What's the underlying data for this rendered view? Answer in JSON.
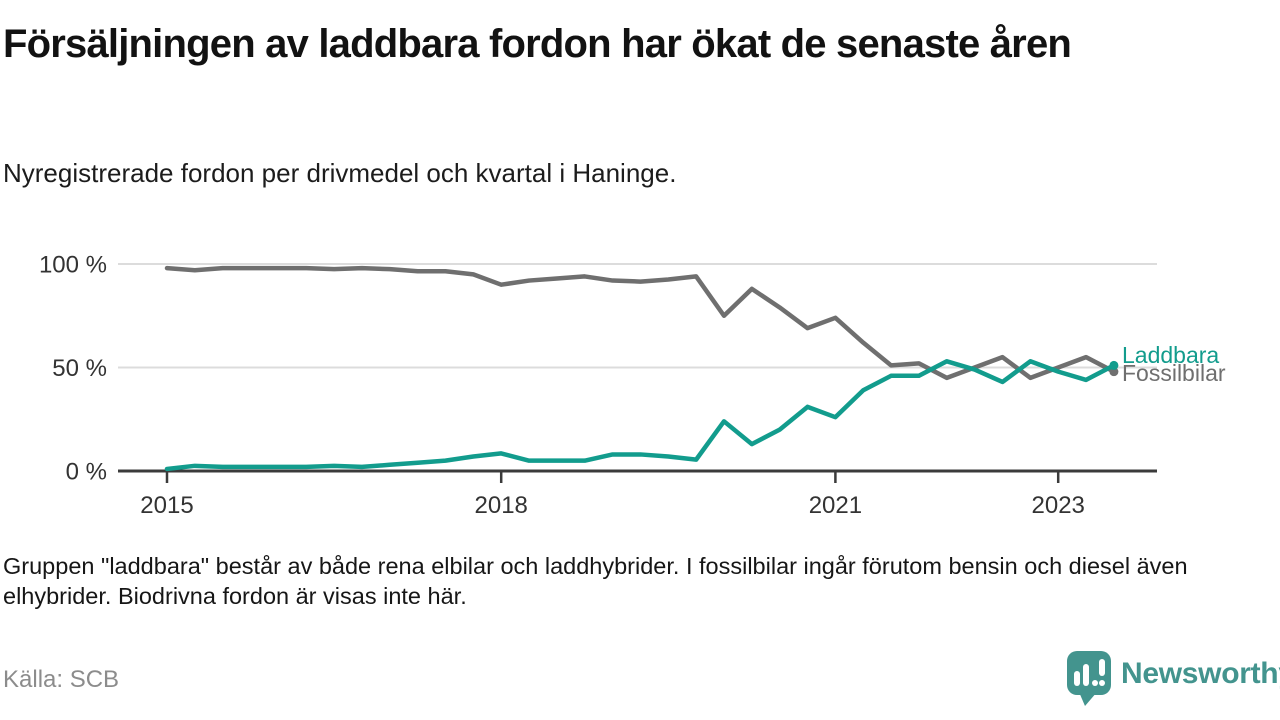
{
  "chart_data": {
    "type": "line",
    "title": "Försäljningen av laddbara fordon har ökat de senaste åren",
    "subtitle": "Nyregistrerade fordon per drivmedel och kvartal i Haninge.",
    "unit": "%",
    "ylim": [
      0,
      100
    ],
    "grid": "horizontal",
    "legend_position": "right-end-of-lines",
    "categories": [
      "2015 Q1",
      "2015 Q2",
      "2015 Q3",
      "2015 Q4",
      "2016 Q1",
      "2016 Q2",
      "2016 Q3",
      "2016 Q4",
      "2017 Q1",
      "2017 Q2",
      "2017 Q3",
      "2017 Q4",
      "2018 Q1",
      "2018 Q2",
      "2018 Q3",
      "2018 Q4",
      "2019 Q1",
      "2019 Q2",
      "2019 Q3",
      "2019 Q4",
      "2020 Q1",
      "2020 Q2",
      "2020 Q3",
      "2020 Q4",
      "2021 Q1",
      "2021 Q2",
      "2021 Q3",
      "2021 Q4",
      "2022 Q1",
      "2022 Q2",
      "2022 Q3",
      "2022 Q4",
      "2023 Q1",
      "2023 Q2",
      "2023 Q3"
    ],
    "series": [
      {
        "name": "Fossilbilar",
        "color": "#6f6f6f",
        "values": [
          98,
          97,
          98,
          98,
          98,
          98,
          97.5,
          98,
          97.5,
          96.5,
          96.5,
          95,
          90,
          92,
          93,
          94,
          92,
          91.5,
          92.5,
          94,
          75,
          88,
          79,
          69,
          74,
          62,
          51,
          52,
          45,
          50,
          55,
          45,
          50,
          55,
          48
        ]
      },
      {
        "name": "Laddbara",
        "color": "#129c8d",
        "values": [
          1,
          2.5,
          2,
          2,
          2,
          2,
          2.5,
          2,
          3,
          4,
          5,
          7,
          8.5,
          5,
          5,
          5,
          8,
          8,
          7,
          5.5,
          24,
          13,
          20,
          31,
          26,
          39,
          46,
          46,
          53,
          49,
          43,
          53,
          48,
          44,
          51
        ]
      }
    ],
    "yticks": [
      {
        "value": 100,
        "label": "100 %"
      },
      {
        "value": 50,
        "label": "50 %"
      },
      {
        "value": 0,
        "label": "0 %"
      }
    ],
    "xticks": [
      {
        "index": 0,
        "label": "2015"
      },
      {
        "index": 12,
        "label": "2018"
      },
      {
        "index": 24,
        "label": "2021"
      },
      {
        "index": 32,
        "label": "2023"
      }
    ]
  },
  "footer": {
    "note": "Gruppen \"laddbara\" består av både rena elbilar och laddhybrider. I fossilbilar ingår förutom bensin och diesel även elhybrider. Biodrivna fordon är visas inte här.",
    "source": "Källa: SCB"
  },
  "branding": {
    "logo_text": "Newsworthy",
    "logo_color": "#43948e"
  }
}
